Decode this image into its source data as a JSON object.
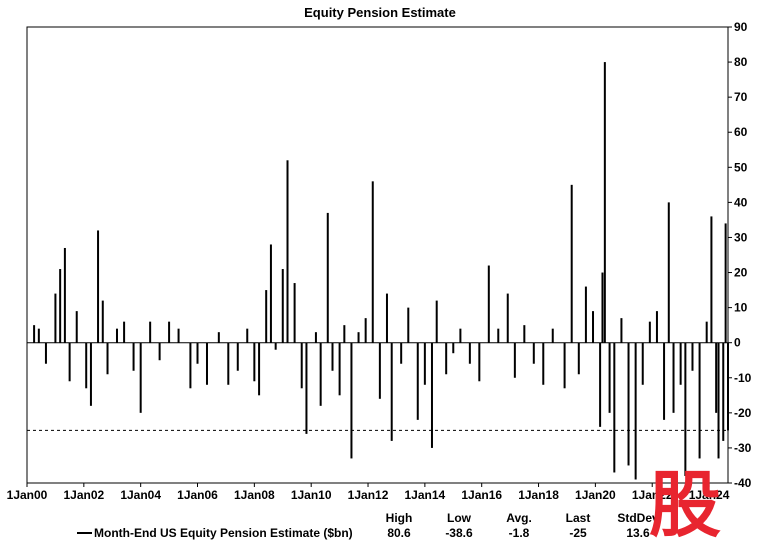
{
  "chart_data": {
    "type": "bar",
    "title": "Equity Pension Estimate",
    "series": [
      {
        "name": "Month-End US Equity Pension Estimate ($bn)"
      }
    ],
    "x_tick_labels": [
      "1Jan00",
      "1Jan02",
      "1Jan04",
      "1Jan06",
      "1Jan08",
      "1Jan10",
      "1Jan12",
      "1Jan14",
      "1Jan16",
      "1Jan18",
      "1Jan20",
      "1Jan22",
      "1Jan24"
    ],
    "x_tick_dates": [
      "2000-01",
      "2002-01",
      "2004-01",
      "2006-01",
      "2008-01",
      "2010-01",
      "2012-01",
      "2014-01",
      "2016-01",
      "2018-01",
      "2020-01",
      "2022-01",
      "2024-01"
    ],
    "y_ticks": [
      -40,
      -30,
      -20,
      -10,
      0,
      10,
      20,
      30,
      40,
      50,
      60,
      70,
      80,
      90
    ],
    "y_tick_labels": [
      "-40",
      "-30",
      "-20",
      "-10",
      "0",
      "10",
      "20",
      "30",
      "40",
      "50",
      "60",
      "70",
      "80",
      "90"
    ],
    "xlim": [
      "2000-01",
      "2024-09"
    ],
    "ylim": [
      -40,
      90
    ],
    "y_axis_side": "right",
    "reference_line": {
      "value": -25,
      "style": "dashed"
    },
    "grid": false,
    "legend_placement": "bottom-left",
    "data": [
      [
        "2000-04",
        5
      ],
      [
        "2000-06",
        4
      ],
      [
        "2000-09",
        -6
      ],
      [
        "2001-01",
        14
      ],
      [
        "2001-03",
        21
      ],
      [
        "2001-05",
        27
      ],
      [
        "2001-07",
        -11
      ],
      [
        "2001-10",
        9
      ],
      [
        "2002-02",
        -13
      ],
      [
        "2002-04",
        -18
      ],
      [
        "2002-07",
        32
      ],
      [
        "2002-09",
        12
      ],
      [
        "2002-11",
        -9
      ],
      [
        "2003-03",
        4
      ],
      [
        "2003-06",
        6
      ],
      [
        "2003-10",
        -8
      ],
      [
        "2004-01",
        -20
      ],
      [
        "2004-05",
        6
      ],
      [
        "2004-09",
        -5
      ],
      [
        "2005-01",
        6
      ],
      [
        "2005-05",
        4
      ],
      [
        "2005-10",
        -13
      ],
      [
        "2006-01",
        -6
      ],
      [
        "2006-05",
        -12
      ],
      [
        "2006-10",
        3
      ],
      [
        "2007-02",
        -12
      ],
      [
        "2007-06",
        -8
      ],
      [
        "2007-10",
        4
      ],
      [
        "2008-01",
        -11
      ],
      [
        "2008-03",
        -15
      ],
      [
        "2008-06",
        15
      ],
      [
        "2008-08",
        28
      ],
      [
        "2008-10",
        -2
      ],
      [
        "2009-01",
        21
      ],
      [
        "2009-03",
        52
      ],
      [
        "2009-06",
        17
      ],
      [
        "2009-09",
        -13
      ],
      [
        "2009-11",
        -26
      ],
      [
        "2010-03",
        3
      ],
      [
        "2010-05",
        -18
      ],
      [
        "2010-08",
        37
      ],
      [
        "2010-10",
        -8
      ],
      [
        "2011-01",
        -15
      ],
      [
        "2011-03",
        5
      ],
      [
        "2011-06",
        -33
      ],
      [
        "2011-09",
        3
      ],
      [
        "2011-12",
        7
      ],
      [
        "2012-03",
        46
      ],
      [
        "2012-06",
        -16
      ],
      [
        "2012-09",
        14
      ],
      [
        "2012-11",
        -28
      ],
      [
        "2013-03",
        -6
      ],
      [
        "2013-06",
        10
      ],
      [
        "2013-10",
        -22
      ],
      [
        "2014-01",
        -12
      ],
      [
        "2014-04",
        -30
      ],
      [
        "2014-06",
        12
      ],
      [
        "2014-10",
        -9
      ],
      [
        "2015-01",
        -3
      ],
      [
        "2015-04",
        4
      ],
      [
        "2015-08",
        -6
      ],
      [
        "2015-12",
        -11
      ],
      [
        "2016-04",
        22
      ],
      [
        "2016-08",
        4
      ],
      [
        "2016-12",
        14
      ],
      [
        "2017-03",
        -10
      ],
      [
        "2017-07",
        5
      ],
      [
        "2017-11",
        -6
      ],
      [
        "2018-03",
        -12
      ],
      [
        "2018-07",
        4
      ],
      [
        "2018-12",
        -13
      ],
      [
        "2019-03",
        45
      ],
      [
        "2019-06",
        -9
      ],
      [
        "2019-09",
        16
      ],
      [
        "2019-12",
        9
      ],
      [
        "2020-03",
        -24
      ],
      [
        "2020-04",
        20
      ],
      [
        "2020-05",
        80
      ],
      [
        "2020-07",
        -20
      ],
      [
        "2020-09",
        -37
      ],
      [
        "2020-12",
        7
      ],
      [
        "2021-03",
        -35
      ],
      [
        "2021-06",
        -39
      ],
      [
        "2021-09",
        -12
      ],
      [
        "2021-12",
        6
      ],
      [
        "2022-03",
        9
      ],
      [
        "2022-06",
        -22
      ],
      [
        "2022-08",
        40
      ],
      [
        "2022-10",
        -20
      ],
      [
        "2023-01",
        -12
      ],
      [
        "2023-03",
        -38
      ],
      [
        "2023-06",
        -8
      ],
      [
        "2023-09",
        -33
      ],
      [
        "2023-12",
        6
      ],
      [
        "2024-02",
        36
      ],
      [
        "2024-04",
        -20
      ],
      [
        "2024-05",
        -33
      ],
      [
        "2024-07",
        -28
      ],
      [
        "2024-08",
        34
      ],
      [
        "2024-09",
        -25
      ]
    ],
    "stats": [
      {
        "label": "High",
        "value": "80.6"
      },
      {
        "label": "Low",
        "value": "-38.6"
      },
      {
        "label": "Avg.",
        "value": "-1.8"
      },
      {
        "label": "Last",
        "value": "-25"
      },
      {
        "label": "StdDev",
        "value": "13.6"
      }
    ]
  },
  "watermark": {
    "glyph": "股",
    "color": "#e8252f"
  }
}
